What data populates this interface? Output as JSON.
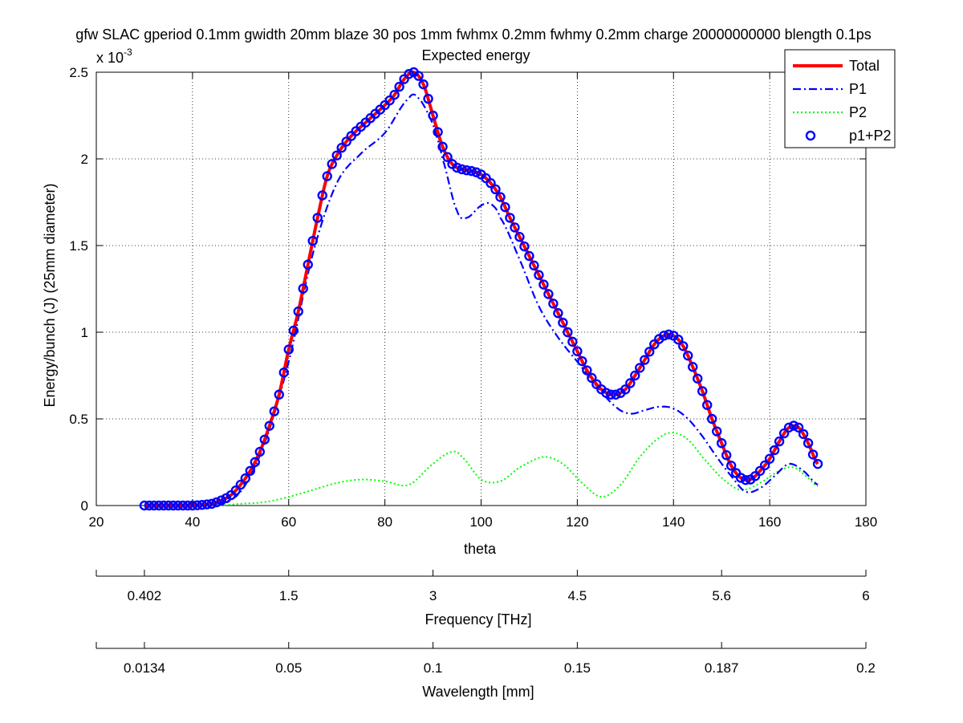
{
  "chart_data": {
    "type": "line",
    "title": "gfw SLAC gperiod 0.1mm gwidth 20mm blaze 30 pos 1mm fwhmx 0.2mm fwhmy 0.2mm charge 20000000000 blength 0.1ps",
    "subtitle": "Expected energy",
    "xlabel": "theta",
    "ylabel": "Energy/bunch (J) (25mm diameter)",
    "y_exponent_label": "x 10",
    "y_exponent_power": "-3",
    "xlim": [
      20,
      180
    ],
    "ylim": [
      0,
      2.5
    ],
    "grid": true,
    "x_ticks": [
      "20",
      "40",
      "60",
      "80",
      "100",
      "120",
      "140",
      "160",
      "180"
    ],
    "y_ticks": [
      "0",
      "0.5",
      "1",
      "1.5",
      "2",
      "2.5"
    ],
    "legend": {
      "placement": "top-right",
      "entries": [
        "Total",
        "P1",
        "P2",
        "p1+P2"
      ]
    },
    "secondary_axes": [
      {
        "label": "Frequency [THz]",
        "ticks": [
          {
            "theta": 30,
            "label": "0.402"
          },
          {
            "theta": 60,
            "label": "1.5"
          },
          {
            "theta": 90,
            "label": "3"
          },
          {
            "theta": 120,
            "label": "4.5"
          },
          {
            "theta": 150,
            "label": "5.6"
          },
          {
            "theta": 180,
            "label": "6"
          }
        ]
      },
      {
        "label": "Wavelength [mm]",
        "ticks": [
          {
            "theta": 30,
            "label": "0.0134"
          },
          {
            "theta": 60,
            "label": "0.05"
          },
          {
            "theta": 90,
            "label": "0.1"
          },
          {
            "theta": 120,
            "label": "0.15"
          },
          {
            "theta": 150,
            "label": "0.187"
          },
          {
            "theta": 180,
            "label": "0.2"
          }
        ]
      }
    ],
    "series": [
      {
        "name": "Total",
        "color": "#ff0000",
        "style": "solid",
        "x": [
          30,
          35,
          40,
          44,
          46,
          48,
          50,
          52,
          54,
          56,
          58,
          60,
          62,
          64,
          66,
          68,
          70,
          72,
          74,
          76,
          78,
          80,
          82,
          84,
          86,
          88,
          90,
          92,
          94,
          96,
          98,
          100,
          102,
          104,
          106,
          108,
          110,
          112,
          114,
          116,
          118,
          120,
          122,
          124,
          126,
          128,
          130,
          132,
          134,
          136,
          138,
          140,
          142,
          144,
          146,
          148,
          150,
          152,
          154,
          156,
          158,
          160,
          162,
          164,
          166,
          168,
          170
        ],
        "y": [
          0.0,
          0.0,
          0.0,
          0.01,
          0.03,
          0.06,
          0.12,
          0.2,
          0.31,
          0.46,
          0.64,
          0.9,
          1.12,
          1.39,
          1.66,
          1.9,
          2.02,
          2.1,
          2.16,
          2.21,
          2.26,
          2.31,
          2.37,
          2.46,
          2.5,
          2.43,
          2.25,
          2.07,
          1.97,
          1.94,
          1.93,
          1.91,
          1.86,
          1.78,
          1.66,
          1.55,
          1.44,
          1.33,
          1.22,
          1.11,
          1.0,
          0.89,
          0.78,
          0.7,
          0.65,
          0.64,
          0.67,
          0.75,
          0.84,
          0.93,
          0.98,
          0.98,
          0.92,
          0.8,
          0.66,
          0.5,
          0.36,
          0.23,
          0.16,
          0.15,
          0.2,
          0.27,
          0.37,
          0.45,
          0.45,
          0.36,
          0.24
        ]
      },
      {
        "name": "P1",
        "color": "#0000ff",
        "style": "dashdot",
        "x": [
          45,
          50,
          55,
          60,
          65,
          70,
          75,
          80,
          85,
          87,
          90,
          92,
          95,
          97,
          100,
          102,
          104,
          108,
          112,
          116,
          120,
          124,
          128,
          131,
          134,
          137,
          140,
          143,
          146,
          149,
          152,
          155,
          158,
          161,
          164,
          167,
          170
        ],
        "y": [
          0.01,
          0.08,
          0.36,
          0.83,
          1.45,
          1.86,
          2.03,
          2.15,
          2.35,
          2.35,
          2.2,
          2.0,
          1.7,
          1.66,
          1.73,
          1.74,
          1.66,
          1.42,
          1.15,
          0.97,
          0.83,
          0.69,
          0.57,
          0.53,
          0.55,
          0.57,
          0.56,
          0.5,
          0.4,
          0.28,
          0.17,
          0.08,
          0.1,
          0.17,
          0.24,
          0.2,
          0.12
        ]
      },
      {
        "name": "P2",
        "color": "#00ff00",
        "style": "dotted",
        "x": [
          45,
          50,
          55,
          60,
          65,
          70,
          75,
          80,
          85,
          90,
          94,
          96,
          100,
          104,
          108,
          113,
          117,
          121,
          125,
          129,
          133,
          137,
          140,
          143,
          146,
          150,
          154,
          158,
          162,
          165,
          168,
          170
        ],
        "y": [
          0.0,
          0.01,
          0.02,
          0.05,
          0.09,
          0.13,
          0.15,
          0.14,
          0.12,
          0.24,
          0.31,
          0.28,
          0.15,
          0.14,
          0.22,
          0.28,
          0.24,
          0.13,
          0.05,
          0.12,
          0.28,
          0.39,
          0.42,
          0.38,
          0.28,
          0.16,
          0.09,
          0.13,
          0.2,
          0.22,
          0.16,
          0.11
        ]
      },
      {
        "name": "p1+P2",
        "color": "#0000ff",
        "style": "circle-markers",
        "x_start": 30,
        "x_step": 1,
        "follows": "Total"
      }
    ]
  }
}
